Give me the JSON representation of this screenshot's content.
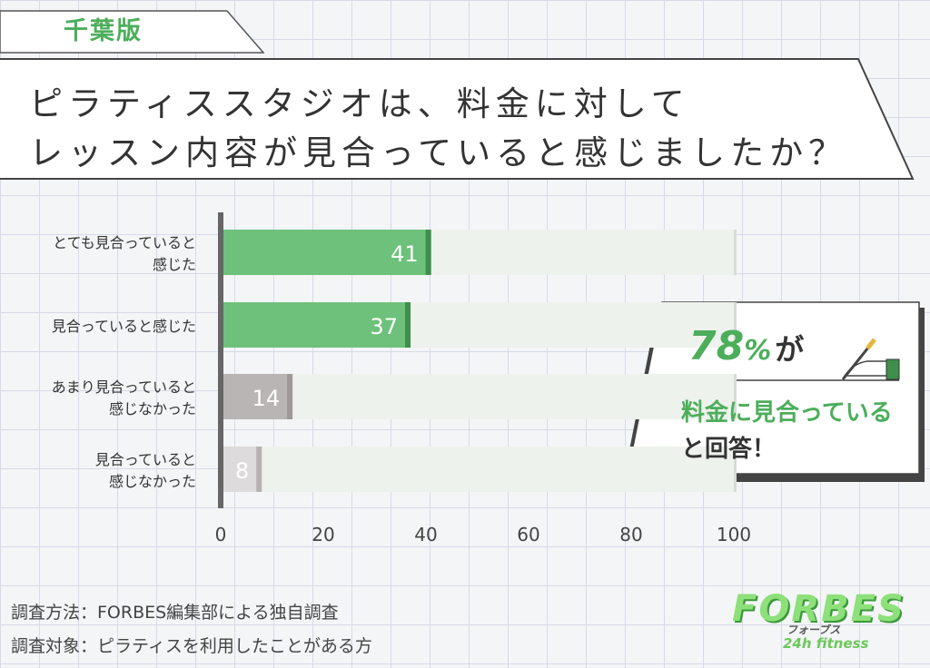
{
  "region": "千葉版",
  "title": {
    "line1": "ピラティススタジオは、料金に対して",
    "line2": "レッスン内容が見合っていると感じましたか？"
  },
  "chart_data": {
    "type": "bar",
    "orientation": "horizontal",
    "categories": [
      [
        "とても見合っていると",
        "感じた"
      ],
      [
        "見合っていると感じた"
      ],
      [
        "あまり見合っていると",
        "感じなかった"
      ],
      [
        "見合っていると",
        "感じなかった"
      ]
    ],
    "values": [
      41,
      37,
      14,
      8
    ],
    "bar_colors": [
      "#6dc17b",
      "#6dc17b",
      "#bab5b5",
      "#dddbdb"
    ],
    "bar_end_colors": [
      "#3f8f4c",
      "#3f8f4c",
      "#9e9999",
      "#b5b2b2"
    ],
    "track_color": "#eef2ec",
    "xlim": [
      0,
      100
    ],
    "xticks": [
      0,
      20,
      40,
      60,
      80,
      100
    ],
    "grid": false
  },
  "callout": {
    "percent": "78",
    "percent_sign": "%",
    "suffix": "が",
    "line2": "料金に見合っている",
    "line3": "と回答！"
  },
  "source": {
    "method": "調査方法：FORBES編集部による独自調査",
    "target": "調査対象：ピラティスを利用したことがある方"
  },
  "logo": {
    "main": "FORBES",
    "kana": "フォーブス",
    "sub": "24h fitness"
  },
  "colors": {
    "accent_green": "#4cae5b",
    "dark_text": "#333333"
  }
}
